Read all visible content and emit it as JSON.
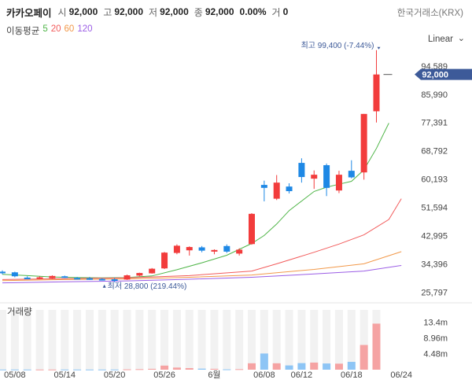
{
  "header": {
    "name": "카카오페이",
    "open_label": "시",
    "open": "92,000",
    "high_label": "고",
    "high": "92,000",
    "low_label": "저",
    "low": "92,000",
    "close_label": "종",
    "close": "92,000",
    "change": "0.00%",
    "volume_label": "거",
    "volume": "0",
    "exchange": "한국거래소(KRX)"
  },
  "moving_average": {
    "label": "이동평균",
    "periods": [
      {
        "text": "5",
        "color": "#4fb548"
      },
      {
        "text": "20",
        "color": "#f25b5b"
      },
      {
        "text": "60",
        "color": "#f2994a"
      },
      {
        "text": "120",
        "color": "#9b5de5"
      }
    ]
  },
  "scale_mode": "Linear",
  "colors": {
    "up": "#f23c3c",
    "down": "#1e88e5",
    "up_vol": "#f5a3a3",
    "down_vol": "#8ec5f5",
    "accent": "#3d5a99"
  },
  "chart_data": {
    "type": "candlestick",
    "price_axis": {
      "ticks": [
        "94,589",
        "85,990",
        "77,391",
        "68,792",
        "60,193",
        "51,594",
        "42,995",
        "34,396",
        "25,797"
      ],
      "tick_values": [
        94589,
        85990,
        77391,
        68792,
        60193,
        51594,
        42995,
        34396,
        25797
      ],
      "range": [
        23000,
        100300
      ],
      "current_price_label": "92,000",
      "current_price": 92000
    },
    "max_annotation": {
      "text": "최고 99,400 (-7.44%)",
      "value": 99400,
      "index": 30
    },
    "min_annotation": {
      "text": "최저 28,800 (219.44%)",
      "value": 28800,
      "index": 9
    },
    "x_labels": [
      {
        "text": "05/08",
        "index": 1
      },
      {
        "text": "05/14",
        "index": 5
      },
      {
        "text": "05/20",
        "index": 9
      },
      {
        "text": "05/26",
        "index": 13
      },
      {
        "text": "6월",
        "index": 17
      },
      {
        "text": "06/08",
        "index": 21
      },
      {
        "text": "06/12",
        "index": 24
      },
      {
        "text": "06/18",
        "index": 28
      },
      {
        "text": "06/24",
        "index": 32
      }
    ],
    "candles": [
      {
        "o": 32000,
        "h": 32400,
        "l": 31200,
        "c": 31700
      },
      {
        "o": 31800,
        "h": 32000,
        "l": 30300,
        "c": 30600
      },
      {
        "o": 30200,
        "h": 30600,
        "l": 29800,
        "c": 30000
      },
      {
        "o": 30000,
        "h": 30600,
        "l": 29700,
        "c": 30300
      },
      {
        "o": 30000,
        "h": 30900,
        "l": 29800,
        "c": 30700
      },
      {
        "o": 30600,
        "h": 30800,
        "l": 30100,
        "c": 30300
      },
      {
        "o": 30100,
        "h": 30400,
        "l": 29600,
        "c": 29800
      },
      {
        "o": 30000,
        "h": 30400,
        "l": 29500,
        "c": 29800
      },
      {
        "o": 29800,
        "h": 30000,
        "l": 29400,
        "c": 29600
      },
      {
        "o": 29700,
        "h": 30100,
        "l": 28800,
        "c": 29500
      },
      {
        "o": 29600,
        "h": 31100,
        "l": 29500,
        "c": 30900
      },
      {
        "o": 30800,
        "h": 31700,
        "l": 30600,
        "c": 31600
      },
      {
        "o": 31500,
        "h": 33100,
        "l": 31400,
        "c": 32900
      },
      {
        "o": 33000,
        "h": 38000,
        "l": 32800,
        "c": 37800
      },
      {
        "o": 37700,
        "h": 40300,
        "l": 37300,
        "c": 39900
      },
      {
        "o": 38500,
        "h": 39700,
        "l": 36900,
        "c": 39500
      },
      {
        "o": 39400,
        "h": 39800,
        "l": 37900,
        "c": 38400
      },
      {
        "o": 38100,
        "h": 38800,
        "l": 37300,
        "c": 38600
      },
      {
        "o": 39800,
        "h": 40300,
        "l": 37700,
        "c": 38100
      },
      {
        "o": 37500,
        "h": 39100,
        "l": 36900,
        "c": 38700
      },
      {
        "o": 40400,
        "h": 49800,
        "l": 40200,
        "c": 49600
      },
      {
        "o": 58400,
        "h": 59700,
        "l": 53400,
        "c": 57500
      },
      {
        "o": 54200,
        "h": 61400,
        "l": 53800,
        "c": 59100
      },
      {
        "o": 57900,
        "h": 58900,
        "l": 55800,
        "c": 56500
      },
      {
        "o": 65100,
        "h": 66500,
        "l": 59100,
        "c": 60800
      },
      {
        "o": 60300,
        "h": 62800,
        "l": 57200,
        "c": 61500
      },
      {
        "o": 64400,
        "h": 64900,
        "l": 55000,
        "c": 57500
      },
      {
        "o": 56700,
        "h": 62700,
        "l": 55900,
        "c": 61500
      },
      {
        "o": 62700,
        "h": 65900,
        "l": 60400,
        "c": 60700
      },
      {
        "o": 62200,
        "h": 80000,
        "l": 60000,
        "c": 80000
      },
      {
        "o": 80800,
        "h": 99400,
        "l": 77400,
        "c": 92000
      }
    ],
    "moving_averages": [
      {
        "period": 5,
        "color": "#4fb548",
        "values": [
          [
            0,
            31200
          ],
          [
            2,
            30800
          ],
          [
            4,
            30400
          ],
          [
            6,
            30200
          ],
          [
            8,
            30100
          ],
          [
            10,
            30200
          ],
          [
            12,
            30700
          ],
          [
            14,
            32600
          ],
          [
            16,
            34700
          ],
          [
            18,
            37000
          ],
          [
            20,
            40600
          ],
          [
            21,
            43000
          ],
          [
            22,
            46500
          ],
          [
            23,
            50600
          ],
          [
            24,
            53500
          ],
          [
            25,
            56400
          ],
          [
            26,
            57700
          ],
          [
            27,
            58600
          ],
          [
            28,
            59500
          ],
          [
            29,
            63000
          ],
          [
            30,
            69500
          ],
          [
            31,
            77200
          ]
        ]
      },
      {
        "period": 20,
        "color": "#f25b5b",
        "values": [
          [
            0,
            29600
          ],
          [
            5,
            29900
          ],
          [
            10,
            30100
          ],
          [
            15,
            30800
          ],
          [
            20,
            32200
          ],
          [
            22,
            34400
          ],
          [
            25,
            37900
          ],
          [
            27,
            40400
          ],
          [
            29,
            43200
          ],
          [
            31,
            47900
          ],
          [
            32,
            54200
          ]
        ]
      },
      {
        "period": 60,
        "color": "#f2994a",
        "values": [
          [
            0,
            29300
          ],
          [
            5,
            29600
          ],
          [
            10,
            29800
          ],
          [
            15,
            30300
          ],
          [
            20,
            31000
          ],
          [
            25,
            32700
          ],
          [
            29,
            34400
          ],
          [
            32,
            38100
          ]
        ]
      },
      {
        "period": 120,
        "color": "#9b5de5",
        "values": [
          [
            0,
            28600
          ],
          [
            5,
            28900
          ],
          [
            10,
            29200
          ],
          [
            15,
            29700
          ],
          [
            20,
            30300
          ],
          [
            25,
            31300
          ],
          [
            29,
            32200
          ],
          [
            32,
            33900
          ]
        ]
      }
    ],
    "volume": {
      "label": "거래량",
      "ticks": [
        "13.4m",
        "8.96m",
        "4.48m"
      ],
      "tick_values": [
        13.4,
        8.96,
        4.48
      ],
      "range": [
        0,
        16.8
      ],
      "values": [
        0.05,
        0.05,
        0.05,
        0.05,
        0.05,
        0.05,
        0.05,
        0.05,
        0.05,
        0.05,
        0.1,
        0.15,
        0.25,
        1.15,
        0.6,
        0.45,
        0.3,
        0.25,
        0.1,
        0.15,
        1.8,
        4.55,
        1.8,
        1.2,
        1.85,
        2.0,
        1.75,
        1.7,
        2.2,
        6.95,
        12.95
      ],
      "up": [
        false,
        false,
        false,
        true,
        true,
        false,
        false,
        false,
        false,
        false,
        true,
        true,
        true,
        true,
        true,
        true,
        false,
        true,
        false,
        true,
        true,
        false,
        true,
        false,
        false,
        true,
        false,
        true,
        false,
        true,
        true
      ]
    }
  }
}
